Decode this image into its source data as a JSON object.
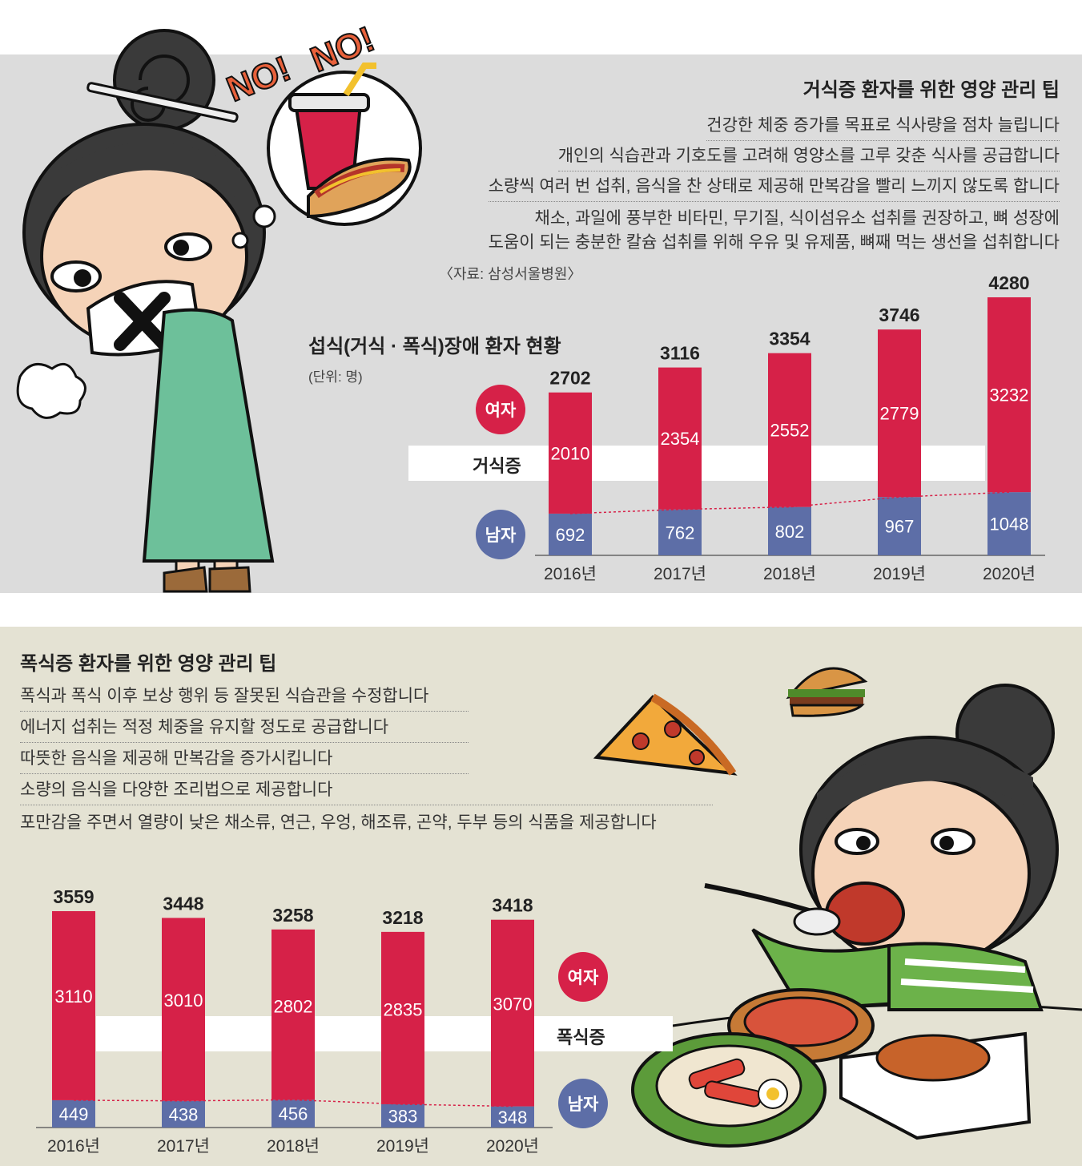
{
  "top": {
    "title": "거식증 환자를 위한 영양 관리 팁",
    "tips": [
      "건강한 체중 증가를 목표로 식사량을 점차 늘립니다",
      "개인의 식습관과 기호도를 고려해 영양소를 고루 갖춘 식사를 공급합니다",
      "소량씩 여러 번 섭취, 음식을 찬 상태로 제공해 만복감을 빨리 느끼지 않도록 합니다",
      "채소, 과일에 풍부한 비타민, 무기질, 식이섬유소 섭취를 권장하고, 뼈 성장에",
      "도움이 되는 충분한 칼슘 섭취를 위해 우유 및 유제품, 뼈째 먹는 생선을 섭취합니다"
    ],
    "source": "〈자료: 삼성서울병원〉",
    "chart_title": "섭식(거식 · 폭식)장애 환자 현황",
    "unit": "(단위: 명)",
    "band_label": "거식증",
    "female_label": "여자",
    "male_label": "남자",
    "exclaim": "NO! NO!"
  },
  "bottom": {
    "title": "폭식증 환자를 위한 영양 관리 팁",
    "tips": [
      "폭식과 폭식 이후 보상 행위 등 잘못된 식습관을 수정합니다",
      "에너지 섭취는 적정 체중을 유지할 정도로 공급합니다",
      "따뜻한 음식을 제공해 만복감을 증가시킵니다",
      "소량의 음식을 다양한 조리법으로 제공합니다",
      "포만감을 주면서 열량이 낮은 채소류, 연근, 우엉, 해조류, 곤약, 두부 등의 식품을 제공합니다"
    ],
    "band_label": "폭식증",
    "female_label": "여자",
    "male_label": "남자"
  },
  "colors": {
    "female": "#d62148",
    "male": "#5d6ea7",
    "top_bg": "#dcdcdc",
    "bottom_bg": "#e4e2d3"
  },
  "chart_data": [
    {
      "type": "bar",
      "stacked": true,
      "title": "섭식(거식 · 폭식)장애 환자 현황",
      "subtitle": "거식증",
      "unit": "(단위: 명)",
      "categories": [
        "2016년",
        "2017년",
        "2018년",
        "2019년",
        "2020년"
      ],
      "series": [
        {
          "name": "남자",
          "values": [
            692,
            762,
            802,
            967,
            1048
          ]
        },
        {
          "name": "여자",
          "values": [
            2010,
            2354,
            2552,
            2779,
            3232
          ]
        }
      ],
      "totals": [
        2702,
        3116,
        3354,
        3746,
        4280
      ]
    },
    {
      "type": "bar",
      "stacked": true,
      "subtitle": "폭식증",
      "categories": [
        "2016년",
        "2017년",
        "2018년",
        "2019년",
        "2020년"
      ],
      "series": [
        {
          "name": "남자",
          "values": [
            449,
            438,
            456,
            383,
            348
          ]
        },
        {
          "name": "여자",
          "values": [
            3110,
            3010,
            2802,
            2835,
            3070
          ]
        }
      ],
      "totals": [
        3559,
        3448,
        3258,
        3218,
        3418
      ]
    }
  ]
}
